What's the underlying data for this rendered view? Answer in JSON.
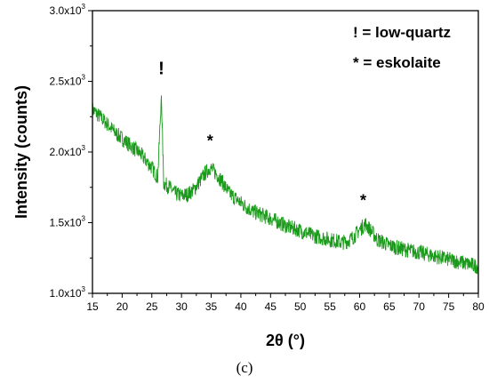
{
  "chart_data": {
    "type": "line",
    "xlabel": "2θ (°)",
    "ylabel": "Intensity (counts)",
    "xlim": [
      15,
      80
    ],
    "ylim": [
      1000,
      3000
    ],
    "x_ticks": [
      "15",
      "20",
      "25",
      "30",
      "35",
      "40",
      "45",
      "50",
      "55",
      "60",
      "65",
      "70",
      "75",
      "80"
    ],
    "y_ticks": [
      {
        "value": 1000,
        "mantissa": "1.0x10",
        "exp": "3"
      },
      {
        "value": 1500,
        "mantissa": "1.5x10",
        "exp": "3"
      },
      {
        "value": 2000,
        "mantissa": "2.0x10",
        "exp": "3"
      },
      {
        "value": 2500,
        "mantissa": "2.5x10",
        "exp": "3"
      },
      {
        "value": 3000,
        "mantissa": "3.0x10",
        "exp": "3"
      }
    ],
    "series_color": "#1a9a1a",
    "series": [
      {
        "x": [
          15,
          17,
          19,
          21,
          23,
          25,
          26,
          26.6,
          27.0,
          28,
          29,
          30,
          31,
          32,
          33,
          34,
          34.8,
          36,
          37,
          38,
          40,
          42,
          45,
          48,
          50,
          52,
          55,
          57,
          58,
          59,
          60,
          61,
          62,
          63,
          65,
          67,
          70,
          75,
          80
        ],
        "y": [
          2300,
          2220,
          2130,
          2060,
          1990,
          1890,
          1820,
          2400,
          1780,
          1750,
          1705,
          1690,
          1700,
          1730,
          1790,
          1850,
          1890,
          1840,
          1780,
          1710,
          1640,
          1580,
          1530,
          1470,
          1445,
          1410,
          1380,
          1360,
          1370,
          1400,
          1450,
          1490,
          1440,
          1380,
          1340,
          1315,
          1290,
          1240,
          1190
        ],
        "noise": 55
      }
    ],
    "grid": false,
    "legend": "top-right"
  },
  "legend_lines": [
    "! = low-quartz",
    "* = eskolaite"
  ],
  "peak_markers": [
    {
      "symbol": "!",
      "x": 26.6,
      "y": 2550
    },
    {
      "symbol": "*",
      "x": 34.8,
      "y": 2040
    },
    {
      "symbol": "*",
      "x": 60.6,
      "y": 1620
    }
  ],
  "panel_label": "(c)"
}
